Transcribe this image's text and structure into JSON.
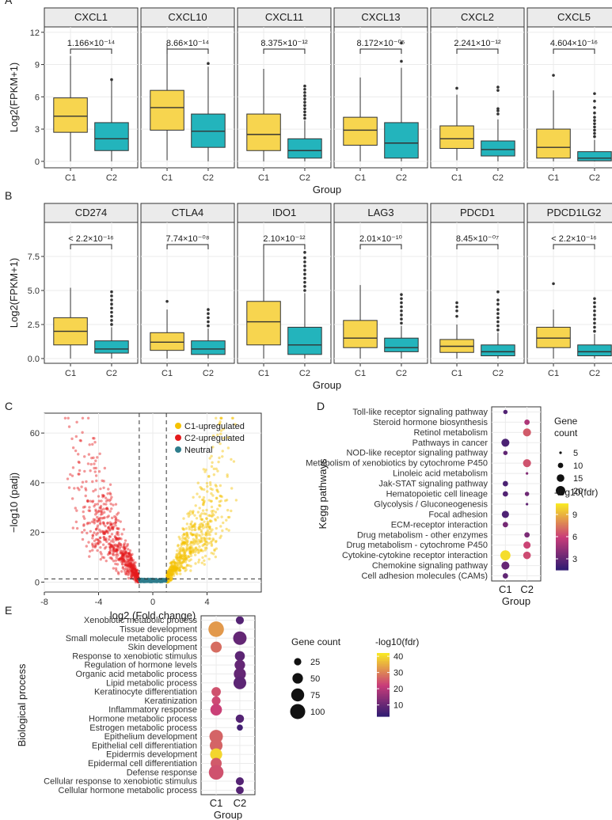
{
  "colors": {
    "c1": "#F7D54F",
    "c2": "#23B4BC",
    "volcano_up": "#F5C200",
    "volcano_down": "#E41A1C",
    "volcano_neutral": "#2E7D8C",
    "strip_bg": "#EBEBEB",
    "grid": "#EBEBEB",
    "viridis_low": "#2B1B72",
    "plasma_mid": "#C93C79",
    "plasma_high": "#F8E825"
  },
  "chart_data": [
    {
      "id": "A",
      "panel_label": "A",
      "type": "boxplot",
      "ylabel": "Log2(FPKM+1)",
      "xlabel": "Group",
      "ylim": [
        -0.6,
        12.5
      ],
      "yticks": [
        0,
        3,
        6,
        9,
        12
      ],
      "ytick_labels": [
        "0",
        "3",
        "6",
        "9",
        "12"
      ],
      "groups": [
        "C1",
        "C2"
      ],
      "facets": [
        {
          "gene": "CXCL1",
          "p_value": "1.166×10⁻¹⁴",
          "boxes": [
            {
              "group": "C1",
              "min": 0,
              "q1": 2.7,
              "median": 4.2,
              "q3": 5.9,
              "max": 9.8,
              "outliers": []
            },
            {
              "group": "C2",
              "min": 0,
              "q1": 1.0,
              "median": 2.1,
              "q3": 3.6,
              "max": 7.5,
              "outliers": [
                7.6
              ]
            }
          ]
        },
        {
          "gene": "CXCL10",
          "p_value": "8.66×10⁻¹⁴",
          "boxes": [
            {
              "group": "C1",
              "min": 0.1,
              "q1": 2.9,
              "median": 5.0,
              "q3": 6.6,
              "max": 10.8,
              "outliers": []
            },
            {
              "group": "C2",
              "min": 0,
              "q1": 1.3,
              "median": 2.8,
              "q3": 4.4,
              "max": 8.8,
              "outliers": [
                9.1
              ]
            }
          ]
        },
        {
          "gene": "CXCL11",
          "p_value": "8.375×10⁻¹²",
          "boxes": [
            {
              "group": "C1",
              "min": 0,
              "q1": 1.0,
              "median": 2.5,
              "q3": 4.4,
              "max": 8.6,
              "outliers": []
            },
            {
              "group": "C2",
              "min": 0,
              "q1": 0.3,
              "median": 1.0,
              "q3": 2.1,
              "max": 3.8,
              "outliers": [
                4.0,
                4.3,
                4.6,
                4.9,
                5.2,
                5.5,
                5.8,
                6.1,
                6.4,
                6.7,
                7.0
              ]
            }
          ]
        },
        {
          "gene": "CXCL13",
          "p_value": "8.172×10⁻⁰⁵",
          "boxes": [
            {
              "group": "C1",
              "min": 0,
              "q1": 1.5,
              "median": 2.9,
              "q3": 4.1,
              "max": 7.8,
              "outliers": []
            },
            {
              "group": "C2",
              "min": 0,
              "q1": 0.3,
              "median": 1.7,
              "q3": 3.6,
              "max": 8.7,
              "outliers": [
                9.3,
                11.0
              ]
            }
          ]
        },
        {
          "gene": "CXCL2",
          "p_value": "2.241×10⁻¹²",
          "boxes": [
            {
              "group": "C1",
              "min": 0.1,
              "q1": 1.2,
              "median": 2.1,
              "q3": 3.3,
              "max": 6.2,
              "outliers": [
                6.8
              ]
            },
            {
              "group": "C2",
              "min": 0,
              "q1": 0.5,
              "median": 1.1,
              "q3": 1.9,
              "max": 3.9,
              "outliers": [
                4.4,
                4.7,
                4.9,
                6.6,
                6.9
              ]
            }
          ]
        },
        {
          "gene": "CXCL5",
          "p_value": "4.604×10⁻¹⁶",
          "boxes": [
            {
              "group": "C1",
              "min": 0,
              "q1": 0.3,
              "median": 1.3,
              "q3": 3.0,
              "max": 6.6,
              "outliers": [
                8.0
              ]
            },
            {
              "group": "C2",
              "min": 0,
              "q1": 0.05,
              "median": 0.3,
              "q3": 0.9,
              "max": 2.0,
              "outliers": [
                2.3,
                2.6,
                2.9,
                3.2,
                3.5,
                3.8,
                4.1,
                4.5,
                5.0,
                5.6,
                6.3
              ]
            }
          ]
        }
      ]
    },
    {
      "id": "B",
      "panel_label": "B",
      "type": "boxplot",
      "ylabel": "Log2(FPKM+1)",
      "xlabel": "Group",
      "ylim": [
        -0.35,
        10.0
      ],
      "yticks": [
        0,
        2.5,
        5,
        7.5
      ],
      "ytick_labels": [
        "0.0",
        "2.5",
        "5.0",
        "7.5"
      ],
      "groups": [
        "C1",
        "C2"
      ],
      "facets": [
        {
          "gene": "CD274",
          "p_value": "< 2.2×10⁻¹⁶",
          "boxes": [
            {
              "group": "C1",
              "min": 0,
              "q1": 1.0,
              "median": 2.0,
              "q3": 3.0,
              "max": 5.2,
              "outliers": []
            },
            {
              "group": "C2",
              "min": 0,
              "q1": 0.4,
              "median": 0.7,
              "q3": 1.3,
              "max": 2.3,
              "outliers": [
                2.5,
                2.8,
                3.1,
                3.4,
                3.7,
                4.0,
                4.3,
                4.6,
                4.9
              ]
            }
          ]
        },
        {
          "gene": "CTLA4",
          "p_value": "7.74×10⁻⁰⁸",
          "boxes": [
            {
              "group": "C1",
              "min": 0,
              "q1": 0.6,
              "median": 1.2,
              "q3": 1.9,
              "max": 3.6,
              "outliers": [
                4.2
              ]
            },
            {
              "group": "C2",
              "min": 0,
              "q1": 0.3,
              "median": 0.7,
              "q3": 1.3,
              "max": 2.2,
              "outliers": [
                2.4,
                2.7,
                3.0,
                3.3,
                3.6
              ]
            }
          ]
        },
        {
          "gene": "IDO1",
          "p_value": "2.10×10⁻¹²",
          "boxes": [
            {
              "group": "C1",
              "min": 0,
              "q1": 1.0,
              "median": 2.7,
              "q3": 4.2,
              "max": 8.2,
              "outliers": []
            },
            {
              "group": "C2",
              "min": 0,
              "q1": 0.3,
              "median": 1.0,
              "q3": 2.3,
              "max": 4.8,
              "outliers": [
                5.0,
                5.3,
                5.6,
                5.9,
                6.2,
                6.5,
                6.8,
                7.1,
                7.4,
                7.8
              ]
            }
          ]
        },
        {
          "gene": "LAG3",
          "p_value": "2.01×10⁻¹⁰",
          "boxes": [
            {
              "group": "C1",
              "min": 0,
              "q1": 0.8,
              "median": 1.5,
              "q3": 2.8,
              "max": 5.4,
              "outliers": []
            },
            {
              "group": "C2",
              "min": 0,
              "q1": 0.5,
              "median": 0.8,
              "q3": 1.5,
              "max": 2.4,
              "outliers": [
                2.6,
                2.9,
                3.2,
                3.5,
                3.8,
                4.1,
                4.4,
                4.7
              ]
            }
          ]
        },
        {
          "gene": "PDCD1",
          "p_value": "8.45×10⁻⁰⁷",
          "boxes": [
            {
              "group": "C1",
              "min": 0,
              "q1": 0.45,
              "median": 0.9,
              "q3": 1.4,
              "max": 2.5,
              "outliers": [
                3.1,
                3.5,
                3.8,
                4.1
              ]
            },
            {
              "group": "C2",
              "min": 0,
              "q1": 0.2,
              "median": 0.5,
              "q3": 1.0,
              "max": 1.9,
              "outliers": [
                2.1,
                2.4,
                2.7,
                3.0,
                3.3,
                3.6,
                4.0,
                4.3,
                4.9
              ]
            }
          ]
        },
        {
          "gene": "PDCD1LG2",
          "p_value": "< 2.2×10⁻¹⁶",
          "boxes": [
            {
              "group": "C1",
              "min": 0,
              "q1": 0.8,
              "median": 1.5,
              "q3": 2.3,
              "max": 3.6,
              "outliers": [
                5.5
              ]
            },
            {
              "group": "C2",
              "min": 0,
              "q1": 0.2,
              "median": 0.5,
              "q3": 1.0,
              "max": 1.8,
              "outliers": [
                2.0,
                2.3,
                2.6,
                2.9,
                3.2,
                3.5,
                3.8,
                4.1,
                4.4
              ]
            }
          ]
        }
      ]
    },
    {
      "id": "C",
      "panel_label": "C",
      "type": "scatter",
      "xlabel": "log2 (Fold change)",
      "ylabel": "−log10 (padj)",
      "xlim": [
        -8,
        8
      ],
      "ylim": [
        -4,
        68
      ],
      "xticks": [
        -8,
        -4,
        0,
        4
      ],
      "yticks": [
        0,
        20,
        40,
        60
      ],
      "thresholds": {
        "x": [
          -1,
          1
        ],
        "y": 1.3
      },
      "legend": [
        "C1-upregulated",
        "C2-upregulated",
        "Neutral"
      ],
      "seed": 7,
      "n_up": 650,
      "n_down": 650,
      "n_neutral": 260
    },
    {
      "id": "D",
      "panel_label": "D",
      "type": "dot",
      "ylabel": "Kegg pathways",
      "xlabel": "Group",
      "groups": [
        "C1",
        "C2"
      ],
      "pathways": [
        "Toll-like receptor signaling pathway",
        "Steroid hormone biosynthesis",
        "Retinol metabolism",
        "Pathways in cancer",
        "NOD-like receptor signaling pathway",
        "Metabolism of xenobiotics by cytochrome P450",
        "Linoleic acid metabolism",
        "Jak-STAT signaling pathway",
        "Hematopoietic cell lineage",
        "Glycolysis / Gluconeogenesis",
        "Focal adhesion",
        "ECM-receptor interaction",
        "Drug metabolism - other enzymes",
        "Drug metabolism - cytochrome P450",
        "Cytokine-cytokine receptor interaction",
        "Chemokine signaling pathway",
        "Cell adhesion molecules (CAMs)"
      ],
      "points": [
        {
          "pathway": "Toll-like receptor signaling pathway",
          "group": "C1",
          "count": 8,
          "fdr": 2.6
        },
        {
          "pathway": "Steroid hormone biosynthesis",
          "group": "C2",
          "count": 10,
          "fdr": 5.2
        },
        {
          "pathway": "Retinol metabolism",
          "group": "C2",
          "count": 16,
          "fdr": 6.8
        },
        {
          "pathway": "Pathways in cancer",
          "group": "C1",
          "count": 16,
          "fdr": 2.4
        },
        {
          "pathway": "NOD-like receptor signaling pathway",
          "group": "C1",
          "count": 8,
          "fdr": 3.0
        },
        {
          "pathway": "Metabolism of xenobiotics by cytochrome P450",
          "group": "C2",
          "count": 16,
          "fdr": 6.6
        },
        {
          "pathway": "Linoleic acid metabolism",
          "group": "C2",
          "count": 5,
          "fdr": 4.0
        },
        {
          "pathway": "Jak-STAT signaling pathway",
          "group": "C1",
          "count": 10,
          "fdr": 2.4
        },
        {
          "pathway": "Hematopoietic cell lineage",
          "group": "C1",
          "count": 10,
          "fdr": 2.6
        },
        {
          "pathway": "Hematopoietic cell lineage",
          "group": "C2",
          "count": 8,
          "fdr": 3.4
        },
        {
          "pathway": "Glycolysis / Gluconeogenesis",
          "group": "C2",
          "count": 5,
          "fdr": 3.0
        },
        {
          "pathway": "Focal adhesion",
          "group": "C1",
          "count": 14,
          "fdr": 2.5
        },
        {
          "pathway": "ECM-receptor interaction",
          "group": "C1",
          "count": 10,
          "fdr": 3.6
        },
        {
          "pathway": "Drug metabolism - other enzymes",
          "group": "C2",
          "count": 10,
          "fdr": 3.8
        },
        {
          "pathway": "Drug metabolism - cytochrome P450",
          "group": "C2",
          "count": 14,
          "fdr": 6.2
        },
        {
          "pathway": "Cytokine-cytokine receptor interaction",
          "group": "C1",
          "count": 22,
          "fdr": 10.2
        },
        {
          "pathway": "Cytokine-cytokine receptor interaction",
          "group": "C2",
          "count": 15,
          "fdr": 6.4
        },
        {
          "pathway": "Chemokine signaling pathway",
          "group": "C1",
          "count": 16,
          "fdr": 3.2
        },
        {
          "pathway": "Cell adhesion molecules (CAMs)",
          "group": "C1",
          "count": 10,
          "fdr": 3.0
        }
      ],
      "size_legend": {
        "title": [
          "Gene",
          "count"
        ],
        "breaks": [
          5,
          10,
          15,
          20
        ],
        "range": [
          5,
          22
        ]
      },
      "color_legend": {
        "title": "-log10(fdr)",
        "min": 1.5,
        "max": 10.5,
        "breaks": [
          3,
          6,
          9
        ]
      }
    },
    {
      "id": "E",
      "panel_label": "E",
      "type": "dot",
      "ylabel": "Biological process",
      "xlabel": "Group",
      "groups": [
        "C1",
        "C2"
      ],
      "terms": [
        "Xenobiotic metabolic process",
        "Tissue development",
        "Small molecule metabolic process",
        "Skin development",
        "Response to xenobiotic stimulus",
        "Regulation of hormone levels",
        "Organic acid metabolic process",
        "Lipid metabolic process",
        "Keratinocyte differentiation",
        "Keratinization",
        "Inflammatory response",
        "Hormone metabolic process",
        "Estrogen metabolic process",
        "Epithelium development",
        "Epithelial cell differentiation",
        "Epidermis development",
        "Epidermal cell differentiation",
        "Defense response",
        "Cellular response to xenobiotic stimulus",
        "Cellular hormone metabolic process"
      ],
      "points": [
        {
          "term": "Xenobiotic metabolic process",
          "group": "C2",
          "count": 30,
          "fdr": 8
        },
        {
          "term": "Tissue development",
          "group": "C1",
          "count": 105,
          "fdr": 33
        },
        {
          "term": "Small molecule metabolic process",
          "group": "C2",
          "count": 80,
          "fdr": 10
        },
        {
          "term": "Skin development",
          "group": "C1",
          "count": 55,
          "fdr": 28
        },
        {
          "term": "Response to xenobiotic stimulus",
          "group": "C2",
          "count": 45,
          "fdr": 9
        },
        {
          "term": "Regulation of hormone levels",
          "group": "C2",
          "count": 50,
          "fdr": 10
        },
        {
          "term": "Organic acid metabolic process",
          "group": "C2",
          "count": 65,
          "fdr": 10
        },
        {
          "term": "Lipid metabolic process",
          "group": "C2",
          "count": 72,
          "fdr": 9
        },
        {
          "term": "Keratinocyte differentiation",
          "group": "C1",
          "count": 40,
          "fdr": 25
        },
        {
          "term": "Keratinization",
          "group": "C1",
          "count": 35,
          "fdr": 24
        },
        {
          "term": "Inflammatory response",
          "group": "C1",
          "count": 60,
          "fdr": 23
        },
        {
          "term": "Hormone metabolic process",
          "group": "C2",
          "count": 32,
          "fdr": 8
        },
        {
          "term": "Estrogen metabolic process",
          "group": "C2",
          "count": 18,
          "fdr": 6
        },
        {
          "term": "Epithelium development",
          "group": "C1",
          "count": 80,
          "fdr": 27
        },
        {
          "term": "Epithelial cell differentiation",
          "group": "C1",
          "count": 72,
          "fdr": 27
        },
        {
          "term": "Epidermis development",
          "group": "C1",
          "count": 65,
          "fdr": 40
        },
        {
          "term": "Epidermal cell differentiation",
          "group": "C1",
          "count": 55,
          "fdr": 26
        },
        {
          "term": "Defense response",
          "group": "C1",
          "count": 95,
          "fdr": 25
        },
        {
          "term": "Cellular response to xenobiotic stimulus",
          "group": "C2",
          "count": 30,
          "fdr": 8
        },
        {
          "term": "Cellular hormone metabolic process",
          "group": "C2",
          "count": 28,
          "fdr": 8
        }
      ],
      "size_legend": {
        "title": "Gene count",
        "breaks": [
          25,
          50,
          75,
          100
        ],
        "range": [
          15,
          110
        ]
      },
      "color_legend": {
        "title": "-log10(fdr)",
        "min": 3,
        "max": 42,
        "breaks": [
          10,
          20,
          30,
          40
        ]
      }
    }
  ]
}
